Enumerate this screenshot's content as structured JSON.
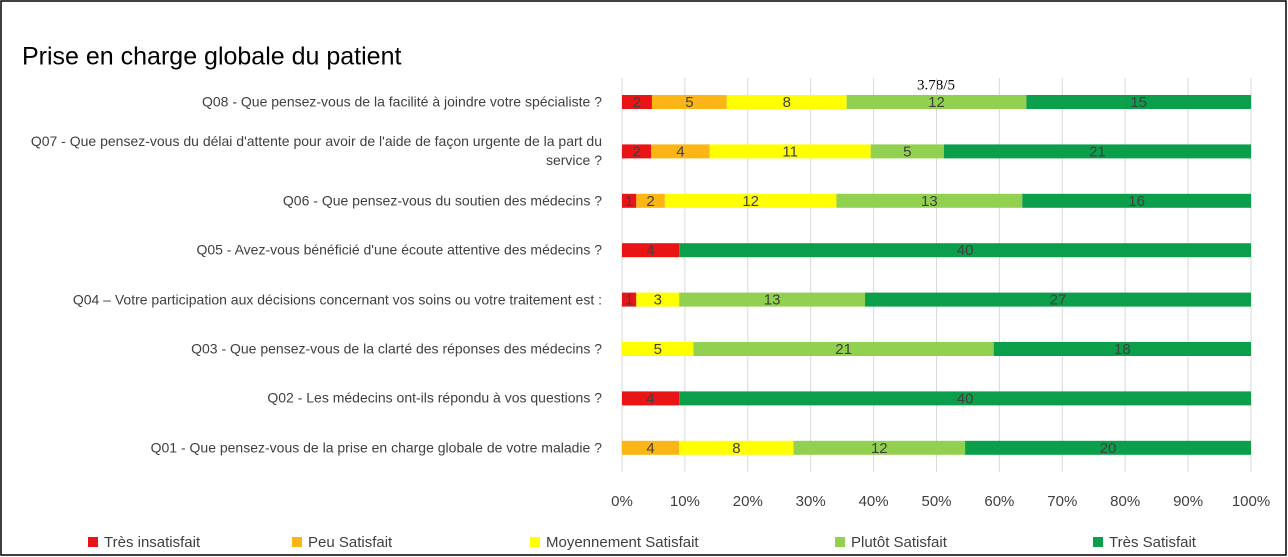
{
  "chart_data": {
    "type": "bar",
    "orientation": "horizontal",
    "stacked": "percent",
    "title": "Prise en charge globale du patient",
    "annotation": "3.78/5",
    "categories": [
      "Q08 - Que pensez-vous de la facilité à joindre votre spécialiste ?",
      "Q07 - Que pensez-vous du délai d'attente pour avoir de l'aide de façon urgente de la part du service ?",
      "Q06 - Que pensez-vous du soutien des médecins ?",
      "Q05 - Avez-vous bénéficié d'une écoute attentive des médecins ?",
      "Q04 – Votre participation aux décisions concernant vos soins ou votre traitement est :",
      "Q03 - Que pensez-vous de la clarté des réponses des médecins ?",
      "Q02 - Les médecins ont-ils répondu à vos questions ?",
      "Q01 - Que pensez-vous de la prise en charge globale de votre maladie ?"
    ],
    "series": [
      {
        "name": "Très insatisfait",
        "color": "#e81416",
        "values": [
          2,
          2,
          1,
          4,
          1,
          0,
          4,
          0
        ]
      },
      {
        "name": "Peu Satisfait",
        "color": "#fbb615",
        "values": [
          5,
          4,
          2,
          0,
          0,
          0,
          0,
          4
        ]
      },
      {
        "name": "Moyennement Satisfait",
        "color": "#ffff00",
        "values": [
          8,
          11,
          12,
          0,
          3,
          5,
          0,
          8
        ]
      },
      {
        "name": "Plutôt Satisfait",
        "color": "#92d050",
        "values": [
          12,
          5,
          13,
          0,
          13,
          21,
          0,
          12
        ]
      },
      {
        "name": "Très Satisfait",
        "color": "#0b9e4b",
        "values": [
          15,
          21,
          16,
          40,
          27,
          18,
          40,
          20
        ]
      }
    ],
    "xlim": [
      0,
      100
    ],
    "xticks": [
      {
        "value": 0,
        "label": "0%"
      },
      {
        "value": 10,
        "label": "10%"
      },
      {
        "value": 20,
        "label": "20%"
      },
      {
        "value": 30,
        "label": "30%"
      },
      {
        "value": 40,
        "label": "40%"
      },
      {
        "value": 50,
        "label": "50%"
      },
      {
        "value": 60,
        "label": "60%"
      },
      {
        "value": 70,
        "label": "70%"
      },
      {
        "value": 80,
        "label": "80%"
      },
      {
        "value": 90,
        "label": "90%"
      },
      {
        "value": 100,
        "label": "100%"
      }
    ],
    "grid": true,
    "legend": "bottom"
  }
}
